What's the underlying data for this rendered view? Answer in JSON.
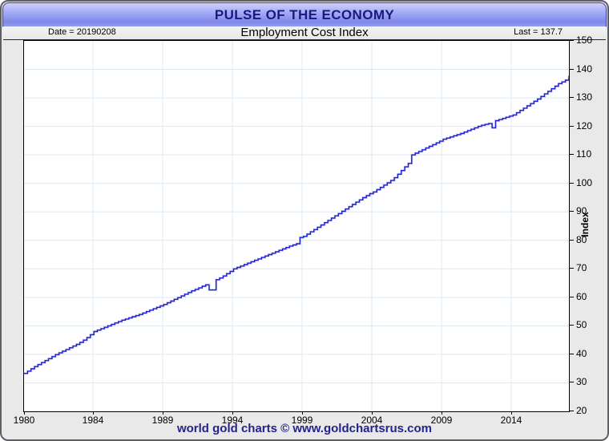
{
  "window": {
    "banner_title": "PULSE OF THE ECONOMY",
    "footer_text": "world gold charts © www.goldchartsrus.com"
  },
  "subheader": {
    "date_label": "Date = 20190208",
    "chart_title": "Employment Cost Index",
    "last_label": "Last = 137.7"
  },
  "colors": {
    "banner_gradient_top": "#cdd1fb",
    "banner_gradient_bottom": "#7f89e9",
    "banner_border": "#3b3b9e",
    "title_text": "#191980",
    "window_background": "#e9e9e9",
    "plot_background": "#ffffff",
    "grid": "#dce9f3",
    "line": "#1f1fce",
    "line_halo": "#b6baf2",
    "footer_text": "#23238b"
  },
  "chart_data": {
    "type": "line",
    "title": "Employment Cost Index",
    "subtitle_date": "20190208",
    "last_value": 137.7,
    "ylabel": "Index",
    "xlabel": "",
    "ylim": [
      20,
      150
    ],
    "grid": true,
    "legend_position": "none",
    "line_style": "step-after",
    "frequency": "quarterly",
    "x_start_year": 1980,
    "x_end_year": 2019,
    "y_ticks": [
      150,
      140,
      130,
      120,
      110,
      100,
      90,
      80,
      70,
      60,
      50,
      40,
      30,
      20
    ],
    "x_ticks": [
      {
        "label": "1980",
        "px": 0
      },
      {
        "label": "1984",
        "px": 86
      },
      {
        "label": "1989",
        "px": 173
      },
      {
        "label": "1994",
        "px": 260
      },
      {
        "label": "1999",
        "px": 347
      },
      {
        "label": "2004",
        "px": 434
      },
      {
        "label": "2009",
        "px": 521
      },
      {
        "label": "2014",
        "px": 608
      }
    ],
    "values": [
      33.3,
      34.1,
      34.9,
      35.7,
      36.4,
      37.1,
      37.8,
      38.5,
      39.2,
      39.9,
      40.5,
      41.1,
      41.7,
      42.3,
      42.9,
      43.5,
      44.2,
      45.0,
      45.9,
      46.9,
      48.0,
      48.5,
      49.0,
      49.5,
      50.0,
      50.5,
      51.0,
      51.5,
      52.0,
      52.4,
      52.8,
      53.2,
      53.6,
      54.0,
      54.5,
      55.0,
      55.5,
      56.0,
      56.5,
      57.0,
      57.5,
      58.1,
      58.7,
      59.3,
      59.9,
      60.5,
      61.1,
      61.7,
      62.3,
      62.8,
      63.3,
      63.9,
      64.4,
      62.6,
      62.6,
      66.2,
      66.8,
      67.5,
      68.3,
      69.1,
      70.0,
      70.5,
      71.0,
      71.5,
      72.0,
      72.5,
      73.0,
      73.5,
      74.0,
      74.5,
      75.0,
      75.5,
      76.0,
      76.5,
      77.0,
      77.5,
      78.0,
      78.4,
      78.8,
      81.0,
      81.4,
      82.2,
      83.0,
      83.8,
      84.6,
      85.4,
      86.2,
      87.0,
      87.8,
      88.6,
      89.4,
      90.2,
      91.0,
      91.8,
      92.6,
      93.4,
      94.2,
      95.0,
      95.7,
      96.4,
      97.0,
      97.8,
      98.6,
      99.4,
      100.2,
      101.0,
      102.0,
      103.2,
      104.5,
      105.8,
      107.0,
      110.0,
      110.6,
      111.2,
      111.8,
      112.4,
      113.0,
      113.6,
      114.2,
      114.8,
      115.5,
      115.9,
      116.3,
      116.7,
      117.1,
      117.5,
      118.0,
      118.5,
      119.0,
      119.5,
      120.0,
      120.4,
      120.7,
      121.0,
      119.5,
      122.0,
      122.4,
      122.8,
      123.2,
      123.6,
      124.0,
      124.8,
      125.6,
      126.4,
      127.2,
      128.0,
      128.8,
      129.6,
      130.5,
      131.4,
      132.3,
      133.2,
      134.1,
      135.0,
      135.6,
      136.2,
      137.7
    ]
  }
}
